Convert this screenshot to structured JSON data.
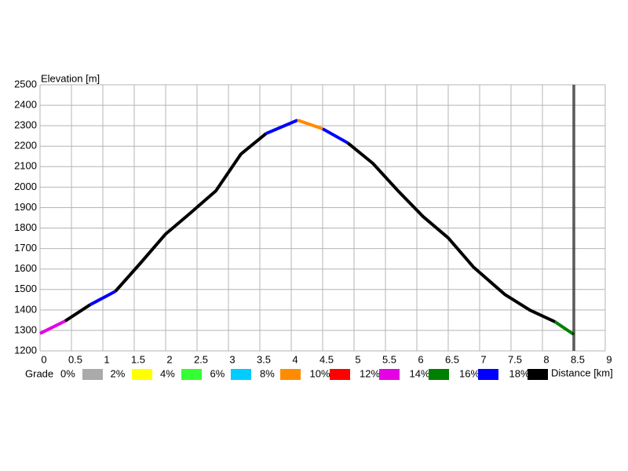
{
  "chart_data": {
    "type": "line",
    "y_label": "Elevation [m]",
    "x_label": "Distance [km]",
    "xlim": [
      0,
      9
    ],
    "xticks": [
      0,
      0.5,
      1,
      1.5,
      2,
      2.5,
      3,
      3.5,
      4,
      4.5,
      5,
      5.5,
      6,
      6.5,
      7,
      7.5,
      8,
      8.5,
      9
    ],
    "ylim": [
      1200,
      2500
    ],
    "yticks": [
      1200,
      1300,
      1400,
      1500,
      1600,
      1700,
      1800,
      1900,
      2000,
      2100,
      2200,
      2300,
      2400,
      2500
    ],
    "grid": true,
    "cursor_x": 8.5,
    "legend": {
      "title": "Grade",
      "labels": [
        "0%",
        "2%",
        "4%",
        "6%",
        "8%",
        "10%",
        "12%",
        "14%",
        "16%",
        "18%"
      ],
      "colors": [
        "#aaaaaa",
        "#ffff00",
        "#33ff33",
        "#00ccff",
        "#ff8c00",
        "#ff0000",
        "#e600e6",
        "#008000",
        "#0000ff",
        "#000000"
      ]
    },
    "series": [
      {
        "color": "#e600e6",
        "x": [
          0,
          0.4
        ],
        "values": [
          1285,
          1346
        ]
      },
      {
        "color": "#000000",
        "x": [
          0.4,
          0.8
        ],
        "values": [
          1346,
          1426
        ]
      },
      {
        "color": "#0000ff",
        "x": [
          0.8,
          1.2
        ],
        "values": [
          1426,
          1491
        ]
      },
      {
        "color": "#000000",
        "x": [
          1.2,
          1.6,
          2.0,
          2.4,
          2.8,
          3.2,
          3.6
        ],
        "values": [
          1491,
          1629,
          1771,
          1875,
          1982,
          2162,
          2262
        ]
      },
      {
        "color": "#0000ff",
        "x": [
          3.6,
          4.1
        ],
        "values": [
          2262,
          2327
        ]
      },
      {
        "color": "#ff8c00",
        "x": [
          4.1,
          4.5
        ],
        "values": [
          2327,
          2285
        ]
      },
      {
        "color": "#0000ff",
        "x": [
          4.5,
          4.9
        ],
        "values": [
          2285,
          2216
        ]
      },
      {
        "color": "#000000",
        "x": [
          4.9,
          5.3,
          5.7,
          6.1,
          6.5,
          6.9,
          7.4,
          7.8,
          8.2
        ],
        "values": [
          2216,
          2116,
          1982,
          1856,
          1752,
          1610,
          1476,
          1399,
          1342
        ]
      },
      {
        "color": "#008000",
        "x": [
          8.2,
          8.5
        ],
        "values": [
          1342,
          1280
        ]
      }
    ]
  }
}
